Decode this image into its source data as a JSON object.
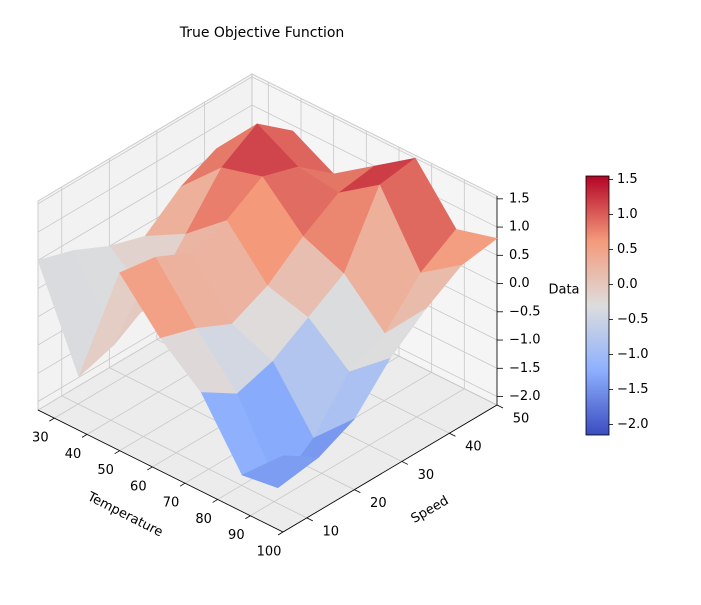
{
  "chart_data": {
    "type": "surface",
    "title": "True Objective Function",
    "x_label": "Temperature",
    "y_label": "Speed",
    "z_label": "Data",
    "colormap": "coolwarm",
    "x": [
      25,
      37.5,
      50,
      62.5,
      75,
      87.5,
      100
    ],
    "y": [
      5,
      12.5,
      20,
      27.5,
      35,
      42.5,
      50
    ],
    "z": [
      [
        0.5,
        -1.2,
        1.0,
        0.2,
        -0.4,
        -1.5,
        -0.8
      ],
      [
        0.3,
        -1.0,
        0.9,
        0.0,
        -0.8,
        -2.1,
        -1.2
      ],
      [
        0.0,
        -0.6,
        0.6,
        -0.3,
        -0.6,
        -1.6,
        -0.9
      ],
      [
        -0.2,
        0.2,
        0.8,
        0.0,
        -0.2,
        -0.8,
        -0.2
      ],
      [
        0.3,
        1.0,
        1.2,
        0.5,
        0.2,
        -0.5,
        0.3
      ],
      [
        0.6,
        1.4,
        1.0,
        0.9,
        1.4,
        0.2,
        0.7
      ],
      [
        0.4,
        0.9,
        0.5,
        1.0,
        1.5,
        0.6,
        0.8
      ]
    ],
    "xlim": [
      25,
      100
    ],
    "ylim": [
      5,
      50
    ],
    "zlim": [
      -2.15,
      1.55
    ],
    "xticks": [
      30,
      40,
      50,
      60,
      70,
      80,
      90,
      100
    ],
    "yticks": [
      10,
      20,
      30,
      40,
      50
    ],
    "zticks": [
      {
        "value": -2.0,
        "label": "−2.0"
      },
      {
        "value": -1.5,
        "label": "−1.5"
      },
      {
        "value": -1.0,
        "label": "−1.0"
      },
      {
        "value": -0.5,
        "label": "−0.5"
      },
      {
        "value": 0.0,
        "label": "0.0"
      },
      {
        "value": 0.5,
        "label": "0.5"
      },
      {
        "value": 1.0,
        "label": "1.0"
      },
      {
        "value": 1.5,
        "label": "1.5"
      }
    ],
    "grid": true,
    "colorbar": true
  }
}
